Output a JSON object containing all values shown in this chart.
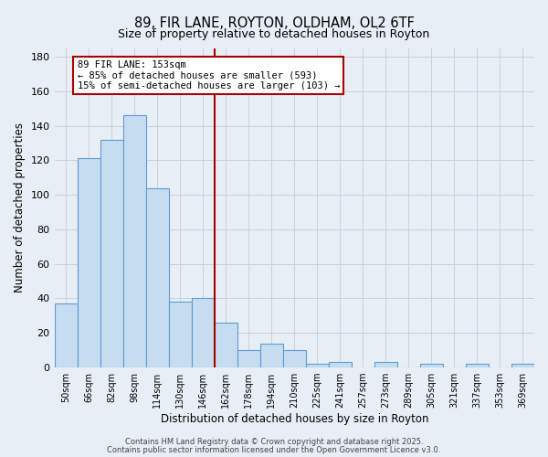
{
  "title": "89, FIR LANE, ROYTON, OLDHAM, OL2 6TF",
  "subtitle": "Size of property relative to detached houses in Royton",
  "xlabel": "Distribution of detached houses by size in Royton",
  "ylabel": "Number of detached properties",
  "categories": [
    "50sqm",
    "66sqm",
    "82sqm",
    "98sqm",
    "114sqm",
    "130sqm",
    "146sqm",
    "162sqm",
    "178sqm",
    "194sqm",
    "210sqm",
    "225sqm",
    "241sqm",
    "257sqm",
    "273sqm",
    "289sqm",
    "305sqm",
    "321sqm",
    "337sqm",
    "353sqm",
    "369sqm"
  ],
  "values": [
    37,
    121,
    132,
    146,
    104,
    38,
    40,
    26,
    10,
    14,
    10,
    2,
    3,
    0,
    3,
    0,
    2,
    0,
    2,
    0,
    2
  ],
  "bar_color": "#c6ddf0",
  "bar_edge_color": "#5b9bd5",
  "ylim": [
    0,
    185
  ],
  "yticks": [
    0,
    20,
    40,
    60,
    80,
    100,
    120,
    140,
    160,
    180
  ],
  "vline_color": "#aa0000",
  "annotation_title": "89 FIR LANE: 153sqm",
  "annotation_line1": "← 85% of detached houses are smaller (593)",
  "annotation_line2": "15% of semi-detached houses are larger (103) →",
  "footnote1": "Contains HM Land Registry data © Crown copyright and database right 2025.",
  "footnote2": "Contains public sector information licensed under the Open Government Licence v3.0.",
  "background_color": "#e8eef5",
  "plot_background": "#e8eef5",
  "grid_color": "#c8d0da"
}
